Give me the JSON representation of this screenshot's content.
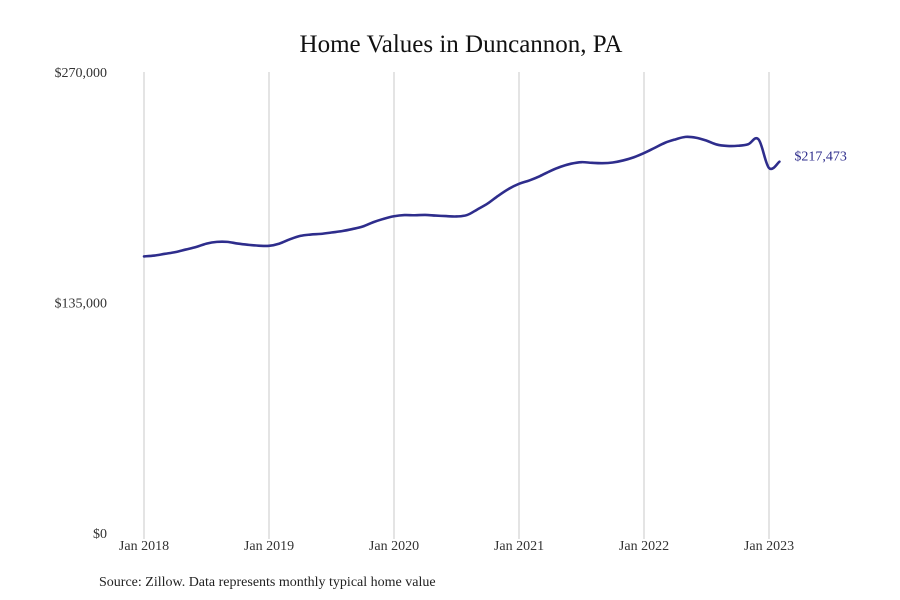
{
  "source_note": "Source: Zillow. Data represents monthly typical home value",
  "colors": {
    "series": "#2e2d8c",
    "grid": "#c8c8c8"
  },
  "chart_data": {
    "type": "line",
    "title": "Home Values in Duncannon, PA",
    "xlabel": "",
    "ylabel": "",
    "ylim": [
      0,
      270000
    ],
    "y_ticks": [
      {
        "value": 0,
        "label": "$0"
      },
      {
        "value": 135000,
        "label": "$135,000"
      },
      {
        "value": 270000,
        "label": "$270,000"
      }
    ],
    "x_ticks": [
      {
        "value": "2018-01",
        "label": "Jan 2018"
      },
      {
        "value": "2019-01",
        "label": "Jan 2019"
      },
      {
        "value": "2020-01",
        "label": "Jan 2020"
      },
      {
        "value": "2021-01",
        "label": "Jan 2021"
      },
      {
        "value": "2022-01",
        "label": "Jan 2022"
      },
      {
        "value": "2023-01",
        "label": "Jan 2023"
      }
    ],
    "grid": "vertical",
    "end_label": "$217,473",
    "series": [
      {
        "x": [
          "2018-01",
          "2018-02",
          "2018-03",
          "2018-04",
          "2018-05",
          "2018-06",
          "2018-07",
          "2018-08",
          "2018-09",
          "2018-10",
          "2018-11",
          "2018-12",
          "2019-01",
          "2019-02",
          "2019-03",
          "2019-04",
          "2019-05",
          "2019-06",
          "2019-07",
          "2019-08",
          "2019-09",
          "2019-10",
          "2019-11",
          "2019-12",
          "2020-01",
          "2020-02",
          "2020-03",
          "2020-04",
          "2020-05",
          "2020-06",
          "2020-07",
          "2020-08",
          "2020-09",
          "2020-10",
          "2020-11",
          "2020-12",
          "2021-01",
          "2021-02",
          "2021-03",
          "2021-04",
          "2021-05",
          "2021-06",
          "2021-07",
          "2021-08",
          "2021-09",
          "2021-10",
          "2021-11",
          "2021-12",
          "2022-01",
          "2022-02",
          "2022-03",
          "2022-04",
          "2022-05",
          "2022-06",
          "2022-07",
          "2022-08",
          "2022-09",
          "2022-10",
          "2022-11",
          "2022-12",
          "2023-01",
          "2023-02"
        ],
        "values": [
          162000,
          162500,
          163500,
          164500,
          166000,
          167500,
          169500,
          170500,
          170500,
          169500,
          168800,
          168300,
          168200,
          169500,
          172000,
          174000,
          174800,
          175200,
          176000,
          176800,
          178000,
          179500,
          182000,
          184000,
          185500,
          186200,
          186100,
          186300,
          185900,
          185600,
          185400,
          186200,
          189500,
          193000,
          197500,
          201500,
          204500,
          206500,
          209000,
          212000,
          214500,
          216300,
          217200,
          216800,
          216600,
          217000,
          218200,
          220000,
          222500,
          225500,
          228500,
          230500,
          232000,
          231500,
          229800,
          227500,
          226700,
          226800,
          227700,
          230500,
          213800,
          217473
        ]
      }
    ]
  }
}
